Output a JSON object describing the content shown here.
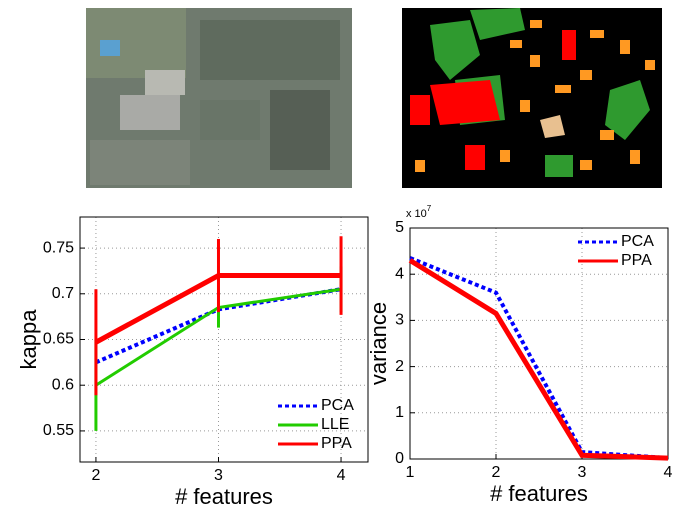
{
  "chart_data": [
    {
      "type": "line",
      "xlabel": "# features",
      "ylabel": "kappa",
      "x": [
        2,
        3,
        4
      ],
      "xlim": [
        1.87,
        4.22
      ],
      "xticks": [
        2,
        3,
        4
      ],
      "ylim": [
        0.516,
        0.784
      ],
      "yticks": [
        0.55,
        0.6,
        0.65,
        0.7,
        0.75
      ],
      "grid": true,
      "legend": "lower right",
      "series": [
        {
          "name": "PCA",
          "color": "#0000ff",
          "linestyle": "dotted",
          "values": [
            0.625,
            0.683,
            0.705
          ]
        },
        {
          "name": "LLE",
          "color": "#22cc00",
          "linestyle": "solid",
          "values": [
            0.6,
            0.685,
            0.705
          ],
          "errors": [
            0.05,
            0.022,
            0.025
          ]
        },
        {
          "name": "PPA",
          "color": "#ff0000",
          "linestyle": "solid",
          "values": [
            0.647,
            0.72,
            0.72
          ],
          "errors": [
            0.058,
            0.04,
            0.043
          ]
        }
      ]
    },
    {
      "type": "line",
      "xlabel": "# features",
      "ylabel": "variance",
      "axis_multiplier": {
        "base": "x 10",
        "exponent": "7"
      },
      "x": [
        1,
        2,
        3,
        4
      ],
      "xlim": [
        1,
        4
      ],
      "xticks": [
        1,
        2,
        3,
        4
      ],
      "ylim": [
        0,
        5
      ],
      "yticks": [
        0,
        1,
        2,
        3,
        4,
        5
      ],
      "grid": true,
      "legend": "upper right",
      "series": [
        {
          "name": "PCA",
          "color": "#0000ff",
          "linestyle": "dotted",
          "values": [
            4.35,
            3.6,
            0.15,
            0.02
          ]
        },
        {
          "name": "PPA",
          "color": "#ff0000",
          "linestyle": "solid",
          "values": [
            4.3,
            3.15,
            0.08,
            0.02
          ]
        }
      ]
    }
  ]
}
